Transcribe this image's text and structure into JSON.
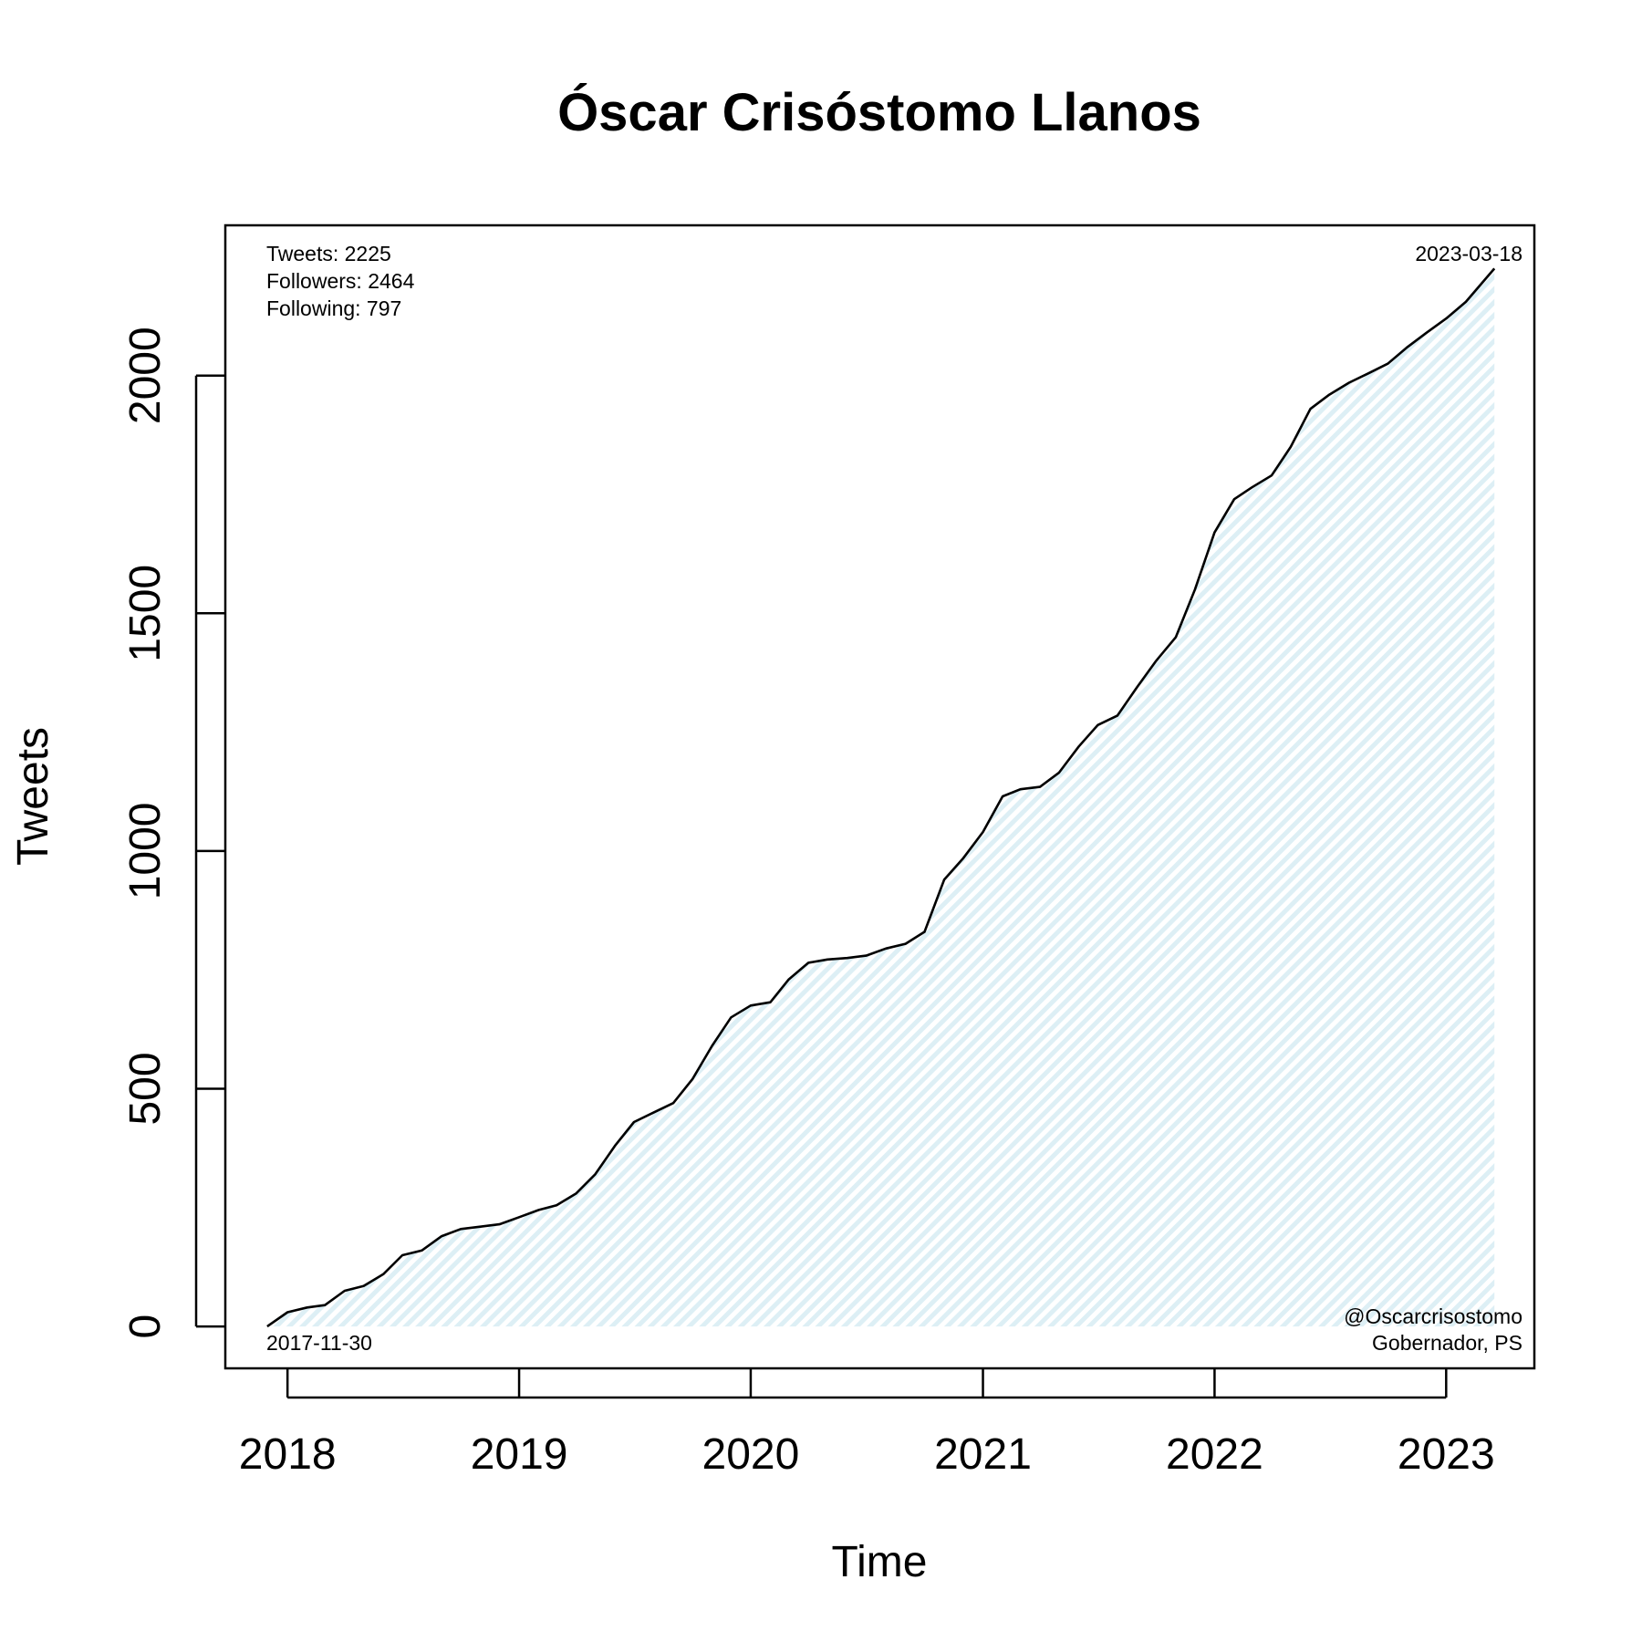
{
  "chart_data": {
    "type": "area",
    "title": "Óscar Crisóstomo Llanos",
    "xlabel": "Time",
    "ylabel": "Tweets",
    "xlim": [
      "2017-09-25",
      "2023-05-20"
    ],
    "ylim": [
      -88,
      2316
    ],
    "x_ticks": [
      {
        "date": "2018-01-01",
        "label": "2018"
      },
      {
        "date": "2019-01-01",
        "label": "2019"
      },
      {
        "date": "2020-01-01",
        "label": "2020"
      },
      {
        "date": "2021-01-01",
        "label": "2021"
      },
      {
        "date": "2022-01-01",
        "label": "2022"
      },
      {
        "date": "2023-01-01",
        "label": "2023"
      }
    ],
    "y_ticks": [
      {
        "value": 0,
        "label": "0"
      },
      {
        "value": 500,
        "label": "500"
      },
      {
        "value": 1000,
        "label": "1000"
      },
      {
        "value": 1500,
        "label": "1500"
      },
      {
        "value": 2000,
        "label": "2000"
      }
    ],
    "grid": false,
    "fill_color": "#ddeff5",
    "line_color": "#000000",
    "annotations": {
      "stats": [
        "Tweets: 2225",
        "Followers: 2464",
        "Following: 797"
      ],
      "end_date": "2023-03-18",
      "start_date": "2017-11-30",
      "handle": "@Oscarcrisostomo",
      "role": "Gobernador, PS"
    },
    "series": [
      {
        "x": [
          "2017-11-30",
          "2018-01-01",
          "2018-02-01",
          "2018-03-01",
          "2018-04-01",
          "2018-05-01",
          "2018-06-01",
          "2018-07-01",
          "2018-08-01",
          "2018-09-01",
          "2018-10-01",
          "2018-11-01",
          "2018-12-01",
          "2019-01-01",
          "2019-02-01",
          "2019-03-01",
          "2019-04-01",
          "2019-05-01",
          "2019-06-01",
          "2019-07-01",
          "2019-08-01",
          "2019-09-01",
          "2019-10-01",
          "2019-11-01",
          "2019-12-01",
          "2020-01-01",
          "2020-02-01",
          "2020-03-01",
          "2020-04-01",
          "2020-05-01",
          "2020-06-01",
          "2020-07-01",
          "2020-08-01",
          "2020-09-01",
          "2020-10-01",
          "2020-11-01",
          "2020-12-01",
          "2021-01-01",
          "2021-02-01",
          "2021-03-01",
          "2021-04-01",
          "2021-05-01",
          "2021-06-01",
          "2021-07-01",
          "2021-08-01",
          "2021-09-01",
          "2021-10-01",
          "2021-11-01",
          "2021-12-01",
          "2022-01-01",
          "2022-02-01",
          "2022-03-01",
          "2022-04-01",
          "2022-05-01",
          "2022-06-01",
          "2022-07-01",
          "2022-08-01",
          "2022-09-01",
          "2022-10-01",
          "2022-11-01",
          "2022-12-01",
          "2023-01-01",
          "2023-02-01",
          "2023-03-18"
        ],
        "values": [
          0,
          30,
          40,
          45,
          75,
          85,
          110,
          150,
          160,
          190,
          205,
          210,
          215,
          230,
          245,
          255,
          280,
          320,
          380,
          430,
          450,
          470,
          520,
          590,
          650,
          675,
          682,
          730,
          765,
          772,
          775,
          780,
          795,
          805,
          830,
          940,
          985,
          1040,
          1115,
          1130,
          1135,
          1165,
          1220,
          1265,
          1285,
          1345,
          1400,
          1450,
          1550,
          1670,
          1740,
          1765,
          1790,
          1850,
          1930,
          1960,
          1985,
          2005,
          2025,
          2060,
          2090,
          2120,
          2155,
          2225
        ]
      }
    ]
  }
}
